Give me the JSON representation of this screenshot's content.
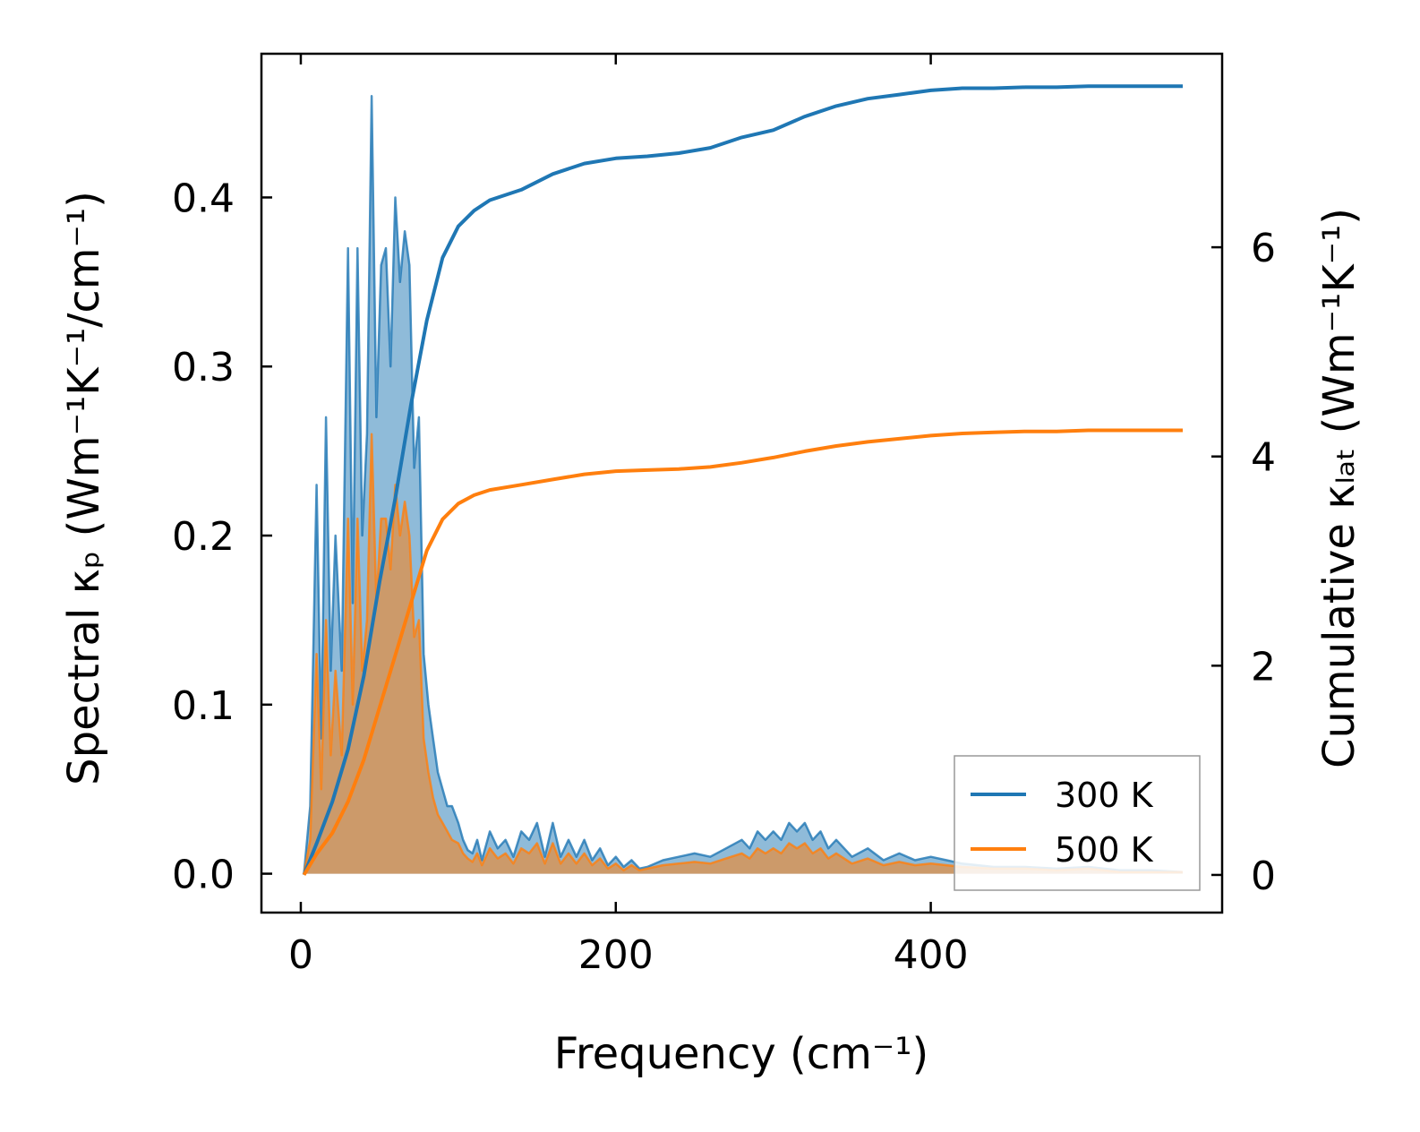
{
  "chart_data": {
    "type": "area",
    "xlabel": "Frequency (cm⁻¹)",
    "ylabel_left": "Spectral κₚ (Wm⁻¹K⁻¹/cm⁻¹)",
    "ylabel_right": "Cumulative κₗₐₜ (Wm⁻¹K⁻¹)",
    "xlim": [
      -25,
      585
    ],
    "ylim_left": [
      -0.023,
      0.485
    ],
    "ylim_right": [
      -0.36,
      7.85
    ],
    "x_ticks": [
      0,
      200,
      400
    ],
    "x_tick_labels": [
      "0",
      "200",
      "400"
    ],
    "y_left_ticks": [
      0.0,
      0.1,
      0.2,
      0.3,
      0.4
    ],
    "y_left_tick_labels": [
      "0.0",
      "0.1",
      "0.2",
      "0.3",
      "0.4"
    ],
    "y_right_ticks": [
      0,
      2,
      4,
      6
    ],
    "y_right_tick_labels": [
      "0",
      "2",
      "4",
      "6"
    ],
    "legend_position": "lower-right",
    "series": [
      {
        "name": "300 K",
        "color": "#1f77b4",
        "spectral": {
          "x": [
            2,
            6,
            10,
            13,
            16,
            19,
            22,
            26,
            30,
            33,
            36,
            39,
            42,
            45,
            48,
            51,
            54,
            57,
            60,
            63,
            66,
            69,
            72,
            75,
            78,
            81,
            84,
            87,
            90,
            93,
            96,
            100,
            103,
            106,
            109,
            112,
            115,
            120,
            125,
            130,
            135,
            140,
            145,
            150,
            155,
            160,
            165,
            170,
            175,
            180,
            185,
            190,
            195,
            200,
            205,
            210,
            215,
            220,
            230,
            240,
            250,
            260,
            270,
            280,
            285,
            290,
            295,
            300,
            305,
            310,
            315,
            320,
            325,
            330,
            335,
            340,
            350,
            360,
            370,
            380,
            390,
            400,
            410,
            420,
            440,
            460,
            480,
            500,
            520,
            540,
            560
          ],
          "y": [
            0.0,
            0.04,
            0.23,
            0.08,
            0.27,
            0.12,
            0.2,
            0.12,
            0.37,
            0.16,
            0.37,
            0.2,
            0.26,
            0.46,
            0.27,
            0.36,
            0.37,
            0.3,
            0.4,
            0.35,
            0.38,
            0.36,
            0.24,
            0.27,
            0.13,
            0.1,
            0.08,
            0.06,
            0.05,
            0.04,
            0.04,
            0.03,
            0.02,
            0.014,
            0.012,
            0.02,
            0.008,
            0.025,
            0.015,
            0.02,
            0.01,
            0.025,
            0.02,
            0.03,
            0.01,
            0.03,
            0.01,
            0.02,
            0.01,
            0.02,
            0.008,
            0.015,
            0.005,
            0.01,
            0.004,
            0.008,
            0.003,
            0.004,
            0.008,
            0.01,
            0.012,
            0.01,
            0.015,
            0.02,
            0.015,
            0.025,
            0.02,
            0.025,
            0.02,
            0.03,
            0.025,
            0.03,
            0.02,
            0.025,
            0.015,
            0.02,
            0.01,
            0.015,
            0.008,
            0.012,
            0.008,
            0.01,
            0.008,
            0.006,
            0.004,
            0.004,
            0.003,
            0.004,
            0.002,
            0.002,
            0.001
          ]
        },
        "cumulative": {
          "x": [
            2,
            10,
            20,
            30,
            40,
            50,
            60,
            70,
            80,
            90,
            100,
            110,
            120,
            140,
            160,
            180,
            200,
            220,
            240,
            260,
            280,
            300,
            320,
            340,
            360,
            380,
            400,
            420,
            440,
            460,
            480,
            500,
            520,
            540,
            560
          ],
          "y": [
            0.0,
            0.3,
            0.7,
            1.2,
            1.9,
            2.8,
            3.6,
            4.5,
            5.3,
            5.9,
            6.2,
            6.35,
            6.45,
            6.55,
            6.7,
            6.8,
            6.85,
            6.87,
            6.9,
            6.95,
            7.05,
            7.12,
            7.25,
            7.35,
            7.42,
            7.46,
            7.5,
            7.52,
            7.52,
            7.53,
            7.53,
            7.54,
            7.54,
            7.54,
            7.54
          ]
        }
      },
      {
        "name": "500 K",
        "color": "#ff7f0e",
        "spectral": {
          "x": [
            2,
            6,
            10,
            13,
            16,
            19,
            22,
            26,
            30,
            33,
            36,
            39,
            42,
            45,
            48,
            51,
            54,
            57,
            60,
            63,
            66,
            69,
            72,
            75,
            78,
            81,
            84,
            87,
            90,
            93,
            96,
            100,
            103,
            106,
            109,
            112,
            115,
            120,
            125,
            130,
            135,
            140,
            145,
            150,
            155,
            160,
            165,
            170,
            175,
            180,
            185,
            190,
            195,
            200,
            205,
            210,
            215,
            220,
            230,
            240,
            250,
            260,
            270,
            280,
            285,
            290,
            295,
            300,
            305,
            310,
            315,
            320,
            325,
            330,
            335,
            340,
            350,
            360,
            370,
            380,
            390,
            400,
            410,
            420,
            440,
            460,
            480,
            500,
            520,
            540,
            560
          ],
          "y": [
            0.0,
            0.02,
            0.13,
            0.05,
            0.15,
            0.07,
            0.12,
            0.07,
            0.21,
            0.1,
            0.21,
            0.12,
            0.15,
            0.26,
            0.16,
            0.21,
            0.21,
            0.18,
            0.23,
            0.2,
            0.22,
            0.2,
            0.14,
            0.15,
            0.08,
            0.06,
            0.045,
            0.035,
            0.03,
            0.025,
            0.02,
            0.018,
            0.012,
            0.009,
            0.007,
            0.012,
            0.005,
            0.015,
            0.009,
            0.012,
            0.006,
            0.015,
            0.012,
            0.018,
            0.006,
            0.018,
            0.006,
            0.012,
            0.006,
            0.012,
            0.005,
            0.009,
            0.003,
            0.006,
            0.002,
            0.005,
            0.002,
            0.003,
            0.005,
            0.006,
            0.007,
            0.006,
            0.009,
            0.012,
            0.009,
            0.015,
            0.012,
            0.015,
            0.012,
            0.018,
            0.015,
            0.018,
            0.012,
            0.015,
            0.009,
            0.012,
            0.006,
            0.009,
            0.005,
            0.007,
            0.005,
            0.006,
            0.005,
            0.004,
            0.003,
            0.003,
            0.002,
            0.003,
            0.001,
            0.001,
            0.001
          ]
        },
        "cumulative": {
          "x": [
            2,
            10,
            20,
            30,
            40,
            50,
            60,
            70,
            80,
            90,
            100,
            110,
            120,
            140,
            160,
            180,
            200,
            220,
            240,
            260,
            280,
            300,
            320,
            340,
            360,
            380,
            400,
            420,
            440,
            460,
            480,
            500,
            520,
            540,
            560
          ],
          "y": [
            0.0,
            0.2,
            0.4,
            0.7,
            1.1,
            1.6,
            2.1,
            2.6,
            3.1,
            3.4,
            3.55,
            3.63,
            3.68,
            3.73,
            3.78,
            3.83,
            3.86,
            3.87,
            3.88,
            3.9,
            3.94,
            3.99,
            4.05,
            4.1,
            4.14,
            4.17,
            4.2,
            4.22,
            4.23,
            4.24,
            4.24,
            4.25,
            4.25,
            4.25,
            4.25
          ]
        }
      }
    ]
  }
}
